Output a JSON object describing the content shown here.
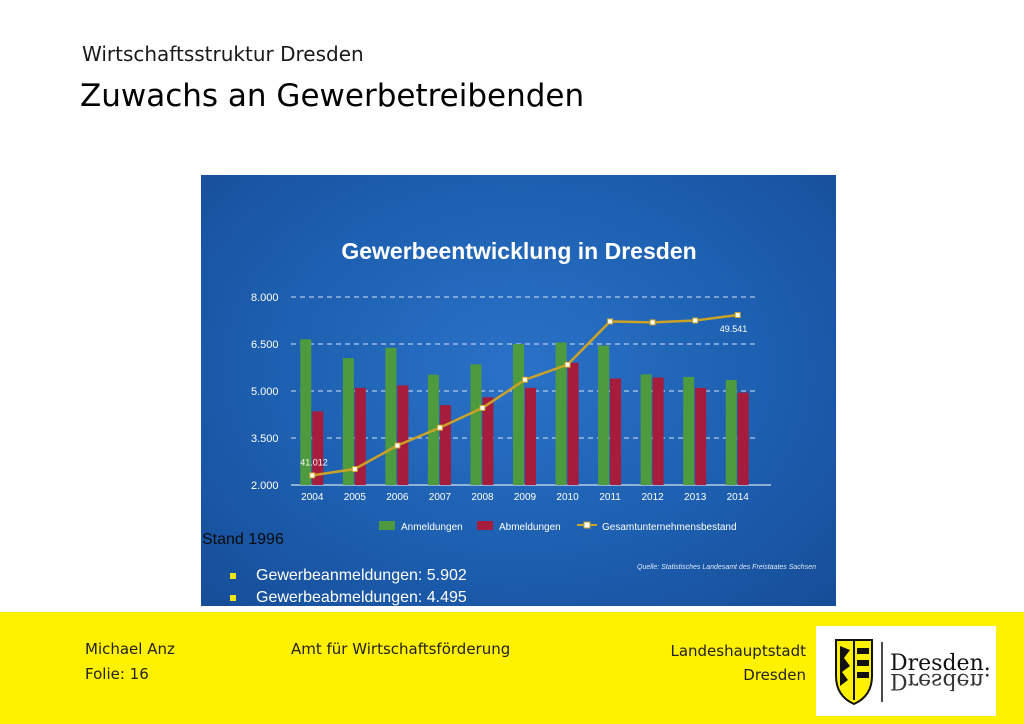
{
  "header": {
    "subtitle": "Wirtschaftsstruktur Dresden",
    "title": "Zuwachs an Gewerbetreibenden"
  },
  "chart_data": {
    "type": "bar",
    "title": "Gewerbeentwicklung in Dresden",
    "categories": [
      "2004",
      "2005",
      "2006",
      "2007",
      "2008",
      "2009",
      "2010",
      "2011",
      "2012",
      "2013",
      "2014"
    ],
    "yticks": [
      "8.000",
      "6.500",
      "5.000",
      "3.500",
      "2.000"
    ],
    "ylim": [
      2000,
      8000
    ],
    "series": [
      {
        "name": "Anmeldungen",
        "kind": "bar",
        "color": "#4e9a3e",
        "values": [
          6650,
          6050,
          6380,
          5520,
          5850,
          6500,
          6550,
          6450,
          5530,
          5450,
          5350
        ]
      },
      {
        "name": "Abmeldungen",
        "kind": "bar",
        "color": "#a51c3c",
        "values": [
          4350,
          5100,
          5180,
          4550,
          4800,
          5100,
          5900,
          5400,
          5430,
          5100,
          4950
        ]
      },
      {
        "name": "Gesamtunternehmensbestand",
        "kind": "line",
        "color": "#c9a227",
        "values": [
          41012,
          41350,
          42600,
          43550,
          44600,
          46100,
          46900,
          49200,
          49150,
          49250,
          49541
        ]
      }
    ],
    "line_labels": {
      "first": "41.012",
      "last": "49.541"
    },
    "source": "Quelle: Statistisches Landesamt des Freistaates Sachsen",
    "grid": true,
    "legend_position": "bottom"
  },
  "notes": {
    "stand": "Stand 1996",
    "bullets": [
      "Gewerbeanmeldungen: 5.902",
      "Gewerbeabmeldungen: 4.495"
    ]
  },
  "footer": {
    "author": "Michael Anz",
    "slide": "Folie: 16",
    "department": "Amt für Wirtschaftsförderung",
    "city_line1": "Landeshauptstadt",
    "city_line2": "Dresden",
    "logo_text": "Dresden.",
    "colors": {
      "background": "#fff200",
      "chart_bg": "#1d5fb0",
      "accent": "#f5e415"
    }
  }
}
